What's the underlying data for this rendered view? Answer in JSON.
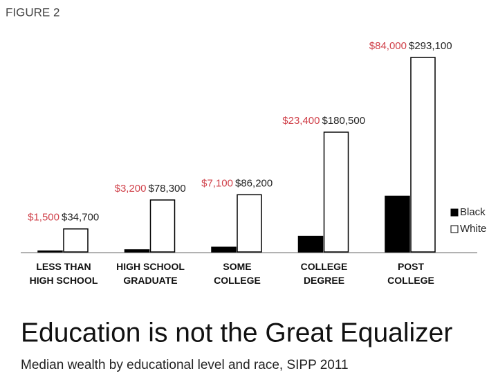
{
  "figure_label": "FIGURE 2",
  "chart_data": {
    "type": "bar",
    "title": "Education is not the Great Equalizer",
    "subtitle": "Median wealth by educational level and race, SIPP 2011",
    "categories": [
      "LESS THAN\nHIGH SCHOOL",
      "HIGH SCHOOL\nGRADUATE",
      "SOME\nCOLLEGE",
      "COLLEGE\nDEGREE",
      "POST\nCOLLEGE"
    ],
    "series": [
      {
        "name": "Black",
        "color": "#000000",
        "label_color": "#d0414a",
        "values": [
          1500,
          3200,
          7100,
          23400,
          84000
        ],
        "value_labels": [
          "$1,500",
          "$3,200",
          "$7,100",
          "$23,400",
          "$84,000"
        ]
      },
      {
        "name": "White",
        "color": "#ffffff",
        "label_color": "#222222",
        "values": [
          34700,
          78300,
          86200,
          180500,
          293100
        ],
        "value_labels": [
          "$34,700",
          "$78,300",
          "$86,200",
          "$180,500",
          "$293,100"
        ]
      }
    ],
    "legend": "right"
  }
}
